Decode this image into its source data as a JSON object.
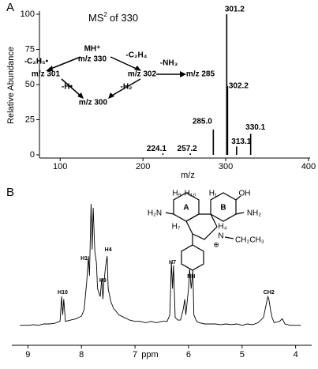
{
  "chart_data": [
    {
      "type": "bar",
      "panel": "A",
      "title": {
        "main": "MS",
        "sup": "2",
        "rest": "of  330"
      },
      "x": [
        224.1,
        257.2,
        285.0,
        301.2,
        302.2,
        313.1,
        330.1
      ],
      "x_labels": [
        "224.1",
        "257.2",
        "285.0",
        "301.2",
        "302.2",
        "313.1",
        "330.1"
      ],
      "values": [
        1,
        1,
        18,
        100,
        49,
        6,
        15
      ],
      "color": "#000000",
      "xlim": [
        75,
        400
      ],
      "xticks": [
        100,
        200,
        300,
        400
      ],
      "xlabel": "m/z",
      "ylim": [
        0,
        100
      ],
      "yticks": [
        0,
        25,
        50,
        75,
        100
      ],
      "ylabel": "Relative Abundance",
      "annotations": [
        "MH⁺",
        "m/z 330",
        "-C₂H₅•",
        "-C₂H₄",
        "m/z 301",
        "m/z 302",
        "-NH₃",
        "m/z 285",
        "-H•",
        "-H₂",
        "m/z 300"
      ]
    },
    {
      "type": "line",
      "panel": "B",
      "color": "#000000",
      "xlim": [
        9.3,
        3.7
      ],
      "xticks": [
        9,
        8,
        7,
        6,
        5,
        4
      ],
      "xlabel": "ppm",
      "x": [
        9.15,
        9.0,
        8.9,
        8.8,
        8.7,
        8.6,
        8.5,
        8.4,
        8.37,
        8.35,
        8.33,
        8.3,
        8.2,
        8.1,
        8.0,
        7.95,
        7.9,
        7.87,
        7.85,
        7.82,
        7.8,
        7.78,
        7.75,
        7.72,
        7.7,
        7.65,
        7.62,
        7.6,
        7.58,
        7.55,
        7.52,
        7.5,
        7.45,
        7.4,
        7.3,
        7.2,
        7.1,
        7.0,
        6.9,
        6.8,
        6.7,
        6.6,
        6.5,
        6.4,
        6.35,
        6.32,
        6.3,
        6.28,
        6.25,
        6.2,
        6.15,
        6.1,
        6.07,
        6.05,
        6.0,
        5.98,
        5.95,
        5.92,
        5.9,
        5.85,
        5.8,
        5.7,
        5.6,
        5.5,
        5.4,
        5.3,
        5.2,
        5.1,
        5.0,
        4.9,
        4.8,
        4.7,
        4.6,
        4.55,
        4.52,
        4.5,
        4.47,
        4.44,
        4.4,
        4.3,
        4.25,
        4.2,
        4.1,
        4.0,
        3.9
      ],
      "values": [
        2,
        2,
        2.5,
        2,
        3,
        3,
        3.5,
        5,
        24,
        10,
        22,
        5,
        6,
        7,
        9,
        14,
        36,
        55,
        40,
        95,
        60,
        92,
        58,
        50,
        30,
        24,
        38,
        22,
        35,
        47,
        55,
        30,
        20,
        15,
        10,
        8,
        6,
        5,
        5,
        4,
        5,
        4,
        5,
        5,
        10,
        50,
        30,
        48,
        8,
        6,
        6,
        14,
        22,
        10,
        30,
        45,
        30,
        44,
        10,
        5,
        4,
        3,
        3,
        3,
        2.5,
        3,
        2.5,
        3,
        2,
        3,
        2.5,
        4,
        8,
        18,
        24,
        22,
        14,
        8,
        4,
        5,
        7,
        3,
        2,
        2,
        2
      ],
      "peak_labels": [
        {
          "text": "H10",
          "ppm": 8.35
        },
        {
          "text": "H1",
          "ppm": 7.95
        },
        {
          "text": "H4",
          "ppm": 7.5
        },
        {
          "text": "H9",
          "ppm": 7.6
        },
        {
          "text": "H7",
          "ppm": 6.3
        },
        {
          "text": "NH",
          "ppm": 5.95
        },
        {
          "text": "CH2",
          "ppm": 4.5
        }
      ]
    }
  ],
  "structure": {
    "labels": [
      "H₉",
      "H₁₀",
      "H₁",
      "OH",
      "H₂N",
      "NH₂",
      "A",
      "B",
      "H₇",
      "N",
      "⊕",
      "CH₂CH₃",
      "H₄"
    ]
  }
}
